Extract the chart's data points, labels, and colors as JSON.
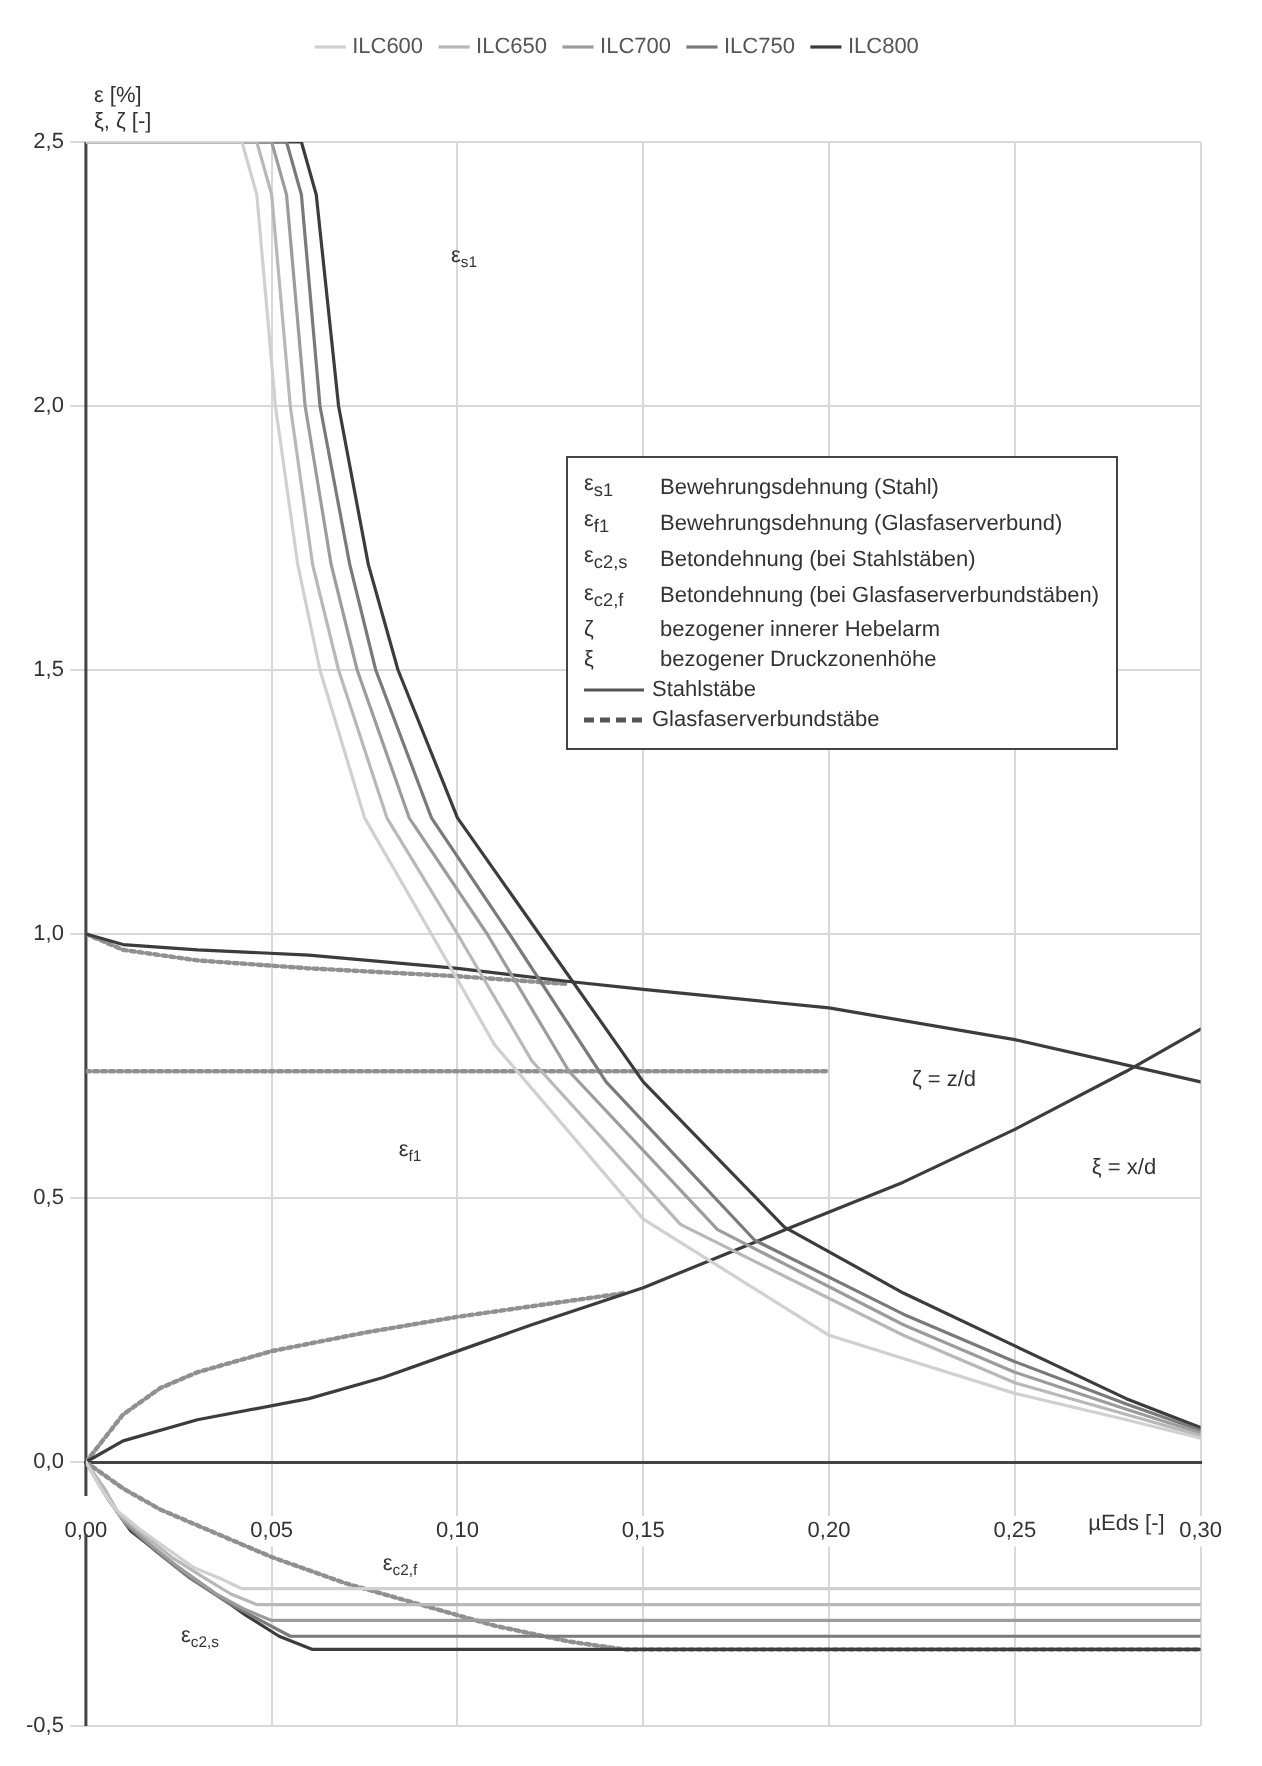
{
  "chart_data": {
    "type": "line",
    "ylabel": "ε [%]\nξ, ζ [-]",
    "xlabel": "µEds [-]",
    "xlim": [
      0,
      0.3
    ],
    "ylim": [
      -0.5,
      2.5
    ],
    "xticks": [
      {
        "value": 0,
        "label": "0,00"
      },
      {
        "value": 0.05,
        "label": "0,05"
      },
      {
        "value": 0.1,
        "label": "0,10"
      },
      {
        "value": 0.15,
        "label": "0,15"
      },
      {
        "value": 0.2,
        "label": "0,20"
      },
      {
        "value": 0.25,
        "label": "0,25"
      },
      {
        "value": 0.3,
        "label": "0,30"
      }
    ],
    "yticks": [
      {
        "value": -0.5,
        "label": "-0,5"
      },
      {
        "value": 0,
        "label": "0,0"
      },
      {
        "value": 0.5,
        "label": "0,5"
      },
      {
        "value": 1,
        "label": "1,0"
      },
      {
        "value": 1.5,
        "label": "1,5"
      },
      {
        "value": 2,
        "label": "2,0"
      },
      {
        "value": 2.5,
        "label": "2,5"
      }
    ],
    "grid": true,
    "legend": "top",
    "marker": "none",
    "line_style": "solid",
    "series": [
      {
        "name": "ILC600",
        "color": "#d0d0d0",
        "x": [
          0,
          0.042,
          0.046,
          0.051,
          0.057,
          0.063,
          0.075,
          0.093,
          0.11,
          0.15,
          0.2,
          0.25,
          0.28,
          0.3
        ],
        "values": [
          2.5,
          2.5,
          2.4,
          2.0,
          1.7,
          1.5,
          1.22,
          1.0,
          0.79,
          0.46,
          0.24,
          0.13,
          0.08,
          0.045
        ]
      },
      {
        "name": "ILC650",
        "color": "#b8b8b8",
        "x": [
          0,
          0.046,
          0.05,
          0.055,
          0.061,
          0.068,
          0.081,
          0.1,
          0.12,
          0.16,
          0.22,
          0.25,
          0.28,
          0.3
        ],
        "values": [
          2.5,
          2.5,
          2.4,
          2.0,
          1.7,
          1.5,
          1.22,
          1.0,
          0.76,
          0.45,
          0.24,
          0.15,
          0.09,
          0.05
        ]
      },
      {
        "name": "ILC700",
        "color": "#9c9c9c",
        "x": [
          0,
          0.05,
          0.054,
          0.059,
          0.066,
          0.073,
          0.087,
          0.108,
          0.13,
          0.17,
          0.22,
          0.25,
          0.28,
          0.3
        ],
        "values": [
          2.5,
          2.5,
          2.4,
          2.0,
          1.7,
          1.5,
          1.22,
          1.0,
          0.74,
          0.44,
          0.26,
          0.17,
          0.1,
          0.055
        ]
      },
      {
        "name": "ILC750",
        "color": "#7a7a7a",
        "x": [
          0,
          0.054,
          0.058,
          0.063,
          0.071,
          0.078,
          0.093,
          0.114,
          0.14,
          0.18,
          0.22,
          0.25,
          0.28,
          0.3
        ],
        "values": [
          2.5,
          2.5,
          2.4,
          2.0,
          1.7,
          1.5,
          1.22,
          1.0,
          0.72,
          0.42,
          0.28,
          0.19,
          0.11,
          0.06
        ]
      },
      {
        "name": "ILC800",
        "color": "#3c3c3c",
        "x": [
          0,
          0.058,
          0.062,
          0.068,
          0.076,
          0.084,
          0.1,
          0.122,
          0.15,
          0.188,
          0.22,
          0.25,
          0.28,
          0.3
        ],
        "values": [
          2.5,
          2.5,
          2.4,
          2.0,
          1.7,
          1.5,
          1.22,
          1.0,
          0.72,
          0.445,
          0.32,
          0.22,
          0.12,
          0.065
        ]
      },
      {
        "color": "#d0d0d0",
        "x": [
          0,
          0.004,
          0.008,
          0.015,
          0.021,
          0.029,
          0.036,
          0.042,
          0.3
        ],
        "values": [
          0,
          -0.05,
          -0.09,
          -0.13,
          -0.16,
          -0.2,
          -0.22,
          -0.24,
          -0.24
        ]
      },
      {
        "color": "#b8b8b8",
        "x": [
          0,
          0.005,
          0.009,
          0.016,
          0.023,
          0.032,
          0.039,
          0.046,
          0.3
        ],
        "values": [
          0,
          -0.05,
          -0.1,
          -0.14,
          -0.18,
          -0.22,
          -0.25,
          -0.27,
          -0.27
        ]
      },
      {
        "color": "#9c9c9c",
        "x": [
          0,
          0.005,
          0.01,
          0.018,
          0.025,
          0.035,
          0.043,
          0.05,
          0.3
        ],
        "values": [
          0,
          -0.06,
          -0.11,
          -0.16,
          -0.2,
          -0.25,
          -0.28,
          -0.3,
          -0.3
        ]
      },
      {
        "color": "#7a7a7a",
        "x": [
          0,
          0.006,
          0.011,
          0.019,
          0.028,
          0.039,
          0.047,
          0.055,
          0.3
        ],
        "values": [
          0,
          -0.07,
          -0.12,
          -0.17,
          -0.22,
          -0.27,
          -0.3,
          -0.33,
          -0.33
        ]
      },
      {
        "color": "#3c3c3c",
        "x": [
          0,
          0.006,
          0.012,
          0.021,
          0.031,
          0.043,
          0.052,
          0.061,
          0.3
        ],
        "values": [
          0,
          -0.07,
          -0.13,
          -0.18,
          -0.23,
          -0.29,
          -0.33,
          -0.355,
          -0.355
        ]
      },
      {
        "color": "#3c3c3c",
        "x": [
          0,
          0.01,
          0.03,
          0.06,
          0.1,
          0.13,
          0.15,
          0.2,
          0.25,
          0.3
        ],
        "values": [
          1.0,
          0.98,
          0.97,
          0.96,
          0.935,
          0.91,
          0.895,
          0.86,
          0.8,
          0.72
        ]
      },
      {
        "color": "#3c3c3c",
        "x": [
          0,
          0.01,
          0.03,
          0.06,
          0.08,
          0.1,
          0.12,
          0.15,
          0.19,
          0.22,
          0.25,
          0.28,
          0.3
        ],
        "values": [
          0,
          0.04,
          0.08,
          0.12,
          0.16,
          0.21,
          0.26,
          0.33,
          0.445,
          0.53,
          0.63,
          0.74,
          0.82
        ]
      },
      {
        "color": "#909090",
        "line_style": "dotted",
        "x": [
          0,
          0.01,
          0.03,
          0.06,
          0.1,
          0.13
        ],
        "values": [
          1.0,
          0.97,
          0.95,
          0.935,
          0.92,
          0.905
        ]
      },
      {
        "color": "#909090",
        "line_style": "dotted",
        "x": [
          0,
          0.01,
          0.02,
          0.03,
          0.05,
          0.075,
          0.1,
          0.125,
          0.145
        ],
        "values": [
          0,
          0.09,
          0.14,
          0.17,
          0.21,
          0.245,
          0.275,
          0.3,
          0.32
        ]
      },
      {
        "color": "#909090",
        "line_style": "dotted",
        "x": [
          0,
          0.2
        ],
        "values": [
          0.74,
          0.74
        ]
      },
      {
        "color": "#909090",
        "line_style": "dotted",
        "x": [
          0,
          0.01,
          0.02,
          0.03,
          0.05,
          0.07,
          0.09,
          0.11,
          0.13,
          0.145,
          0.3
        ],
        "values": [
          0,
          -0.05,
          -0.09,
          -0.12,
          -0.18,
          -0.23,
          -0.27,
          -0.31,
          -0.34,
          -0.355,
          -0.355
        ]
      }
    ],
    "annotations": [
      "ε$_{s1}$",
      "ε$_{f1}$",
      "ζ = z/d",
      "ξ = x/d",
      "ε$_{c2,f}$",
      "ε$_{c2,s}$",
      "ε$_{s1}$ Bewehrungsdehnung (Stahl)",
      "ε$_{f1}$ Bewehrungsdehnung (Glasfaserverbund)",
      "ε$_{c2,s}$ Betondehnung (bei Stahlstäben)",
      "ε$_{c2,f}$ Betondehnung (bei Glasfaserverbundstäben)",
      "ζ bezogener innerer Hebelarm",
      "ξ bezogener Druckzonenhöhe",
      "Stahlstäbe",
      "Glasfaserverbundstäbe"
    ]
  }
}
